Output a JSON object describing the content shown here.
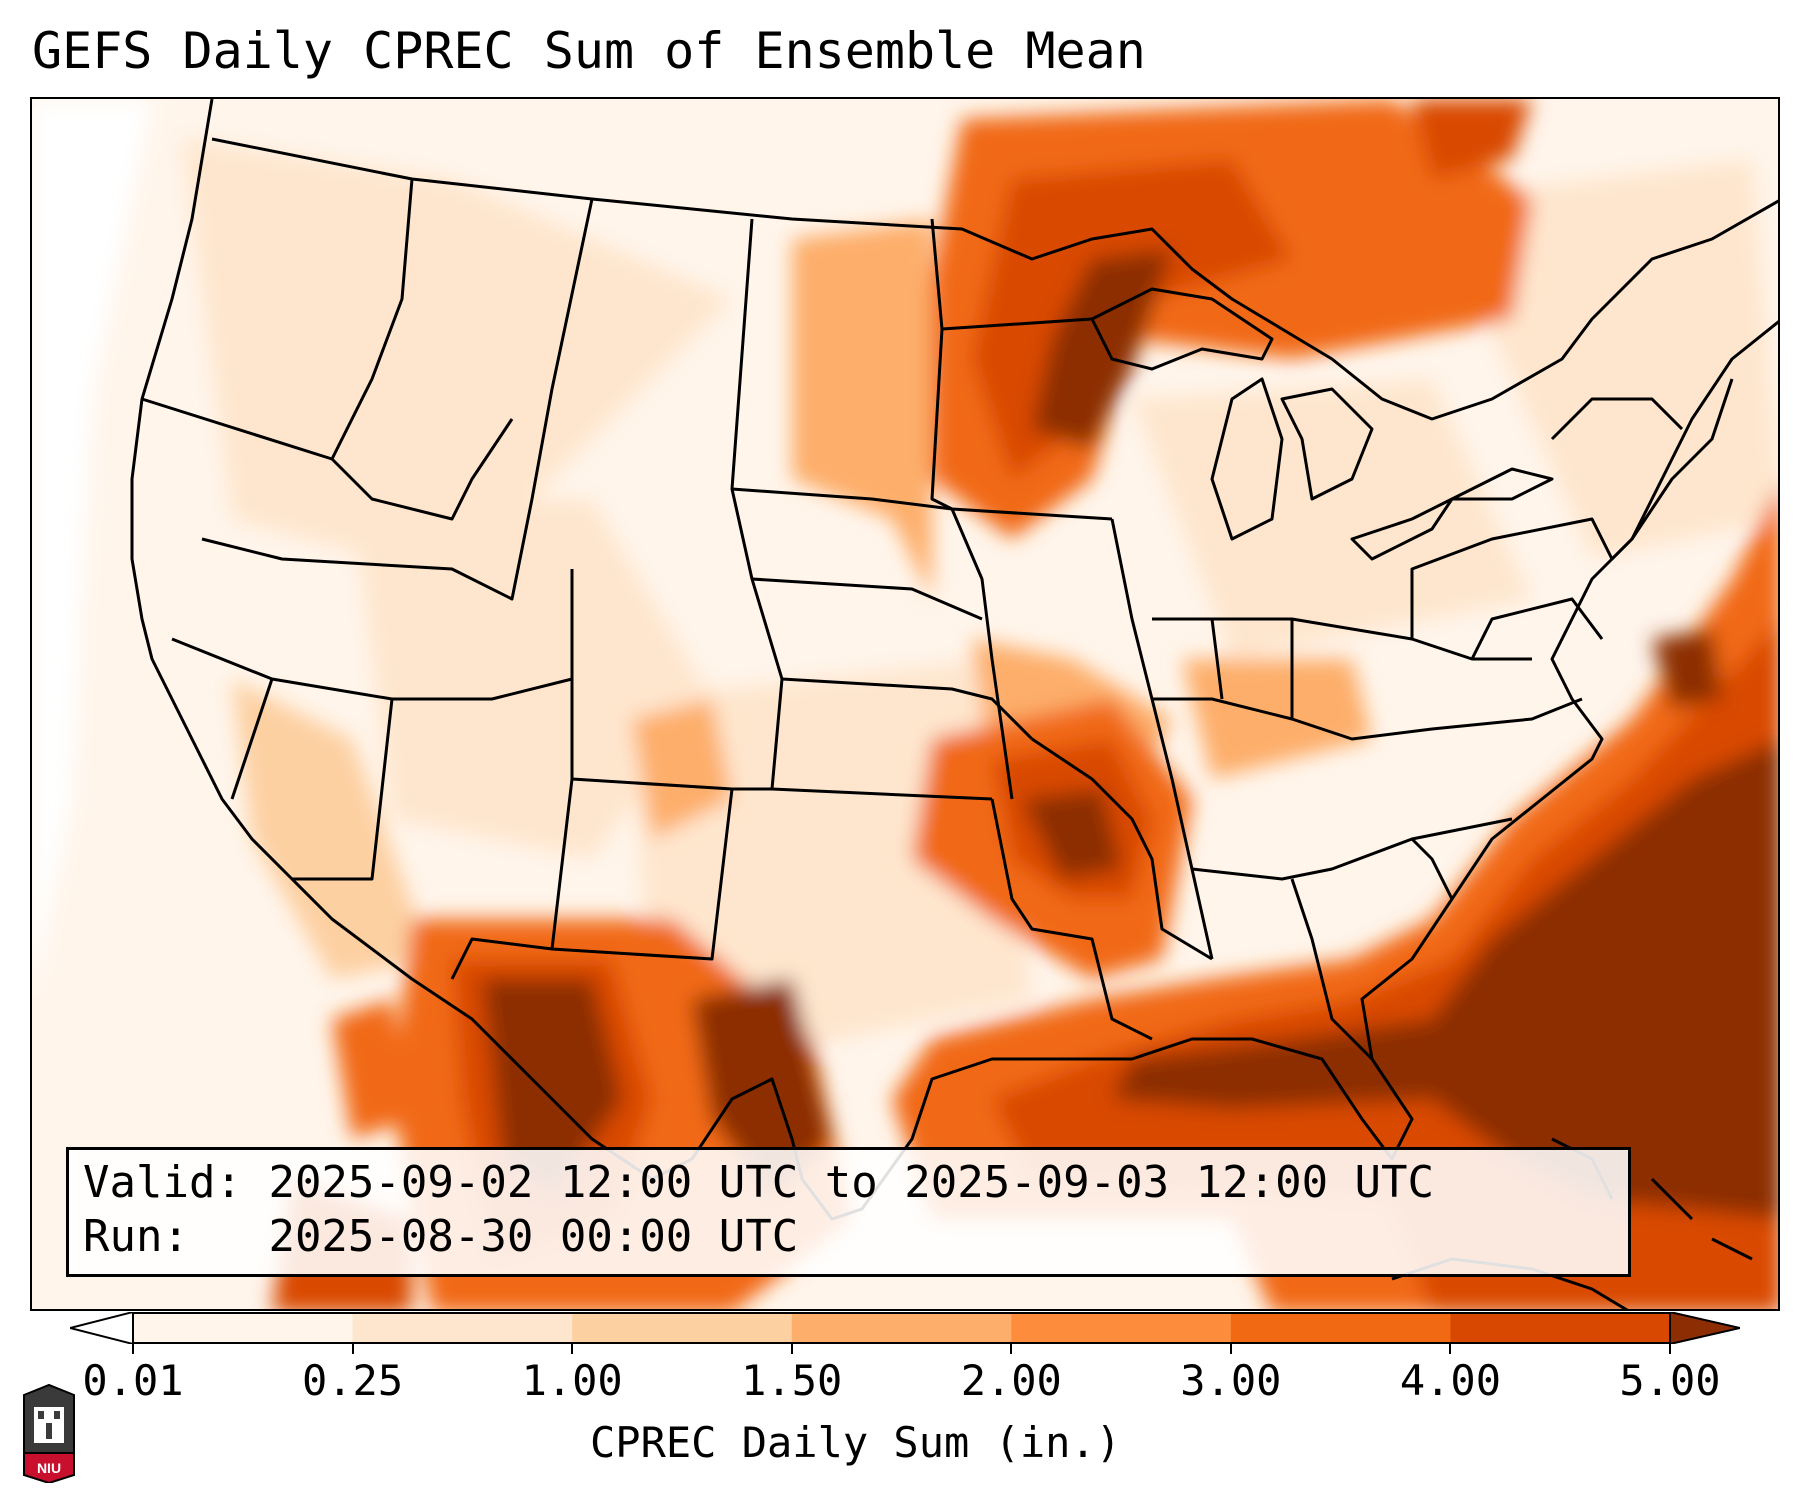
{
  "title": "GEFS Daily CPREC Sum of Ensemble Mean",
  "info": {
    "valid_label": "Valid:",
    "valid_value": "2025-09-02 12:00 UTC to 2025-09-03 12:00 UTC",
    "run_label": "Run:",
    "run_value": "2025-08-30 00:00 UTC"
  },
  "colorbar": {
    "label": "CPREC Daily Sum (in.)",
    "ticks": [
      "0.01",
      "0.25",
      "1.00",
      "1.50",
      "2.00",
      "3.00",
      "4.00",
      "5.00"
    ],
    "colors": [
      "#fff5eb",
      "#fee6ce",
      "#fdd0a2",
      "#fdae6b",
      "#fd8d3c",
      "#f16913",
      "#d94801",
      "#8c2d04"
    ],
    "extend_min_color": "#ffffff",
    "extend_max_color": "#7f2704"
  },
  "logo": {
    "text": "NIU",
    "name": "niu-logo"
  },
  "map": {
    "region": "Continental United States",
    "heavy_areas": [
      "Upper Midwest / Lake Superior",
      "Arkansas / Mississippi Valley",
      "Southeast US coast and Florida",
      "Gulf of Mexico",
      "Northern Mexico (Sierra Madre)"
    ]
  }
}
